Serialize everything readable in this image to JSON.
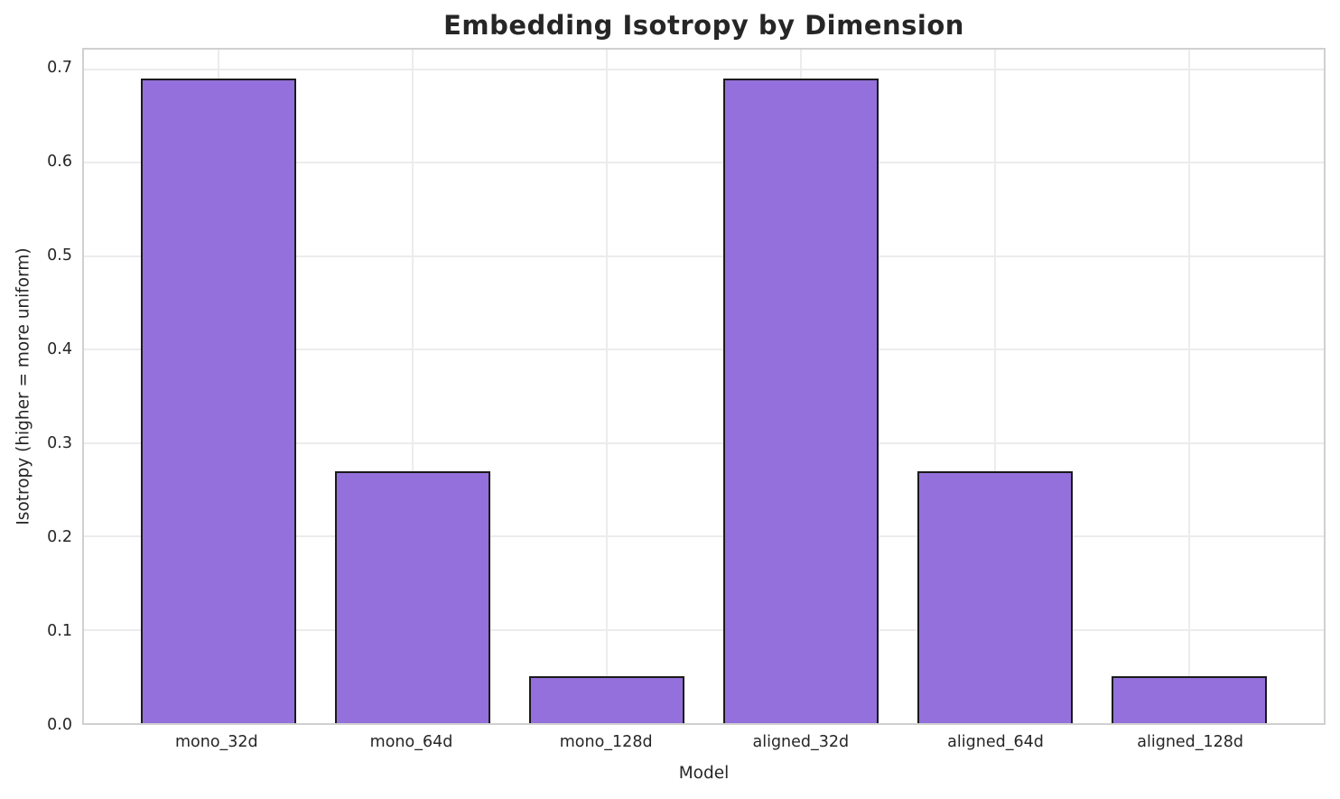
{
  "chart_data": {
    "type": "bar",
    "title": "Embedding Isotropy by Dimension",
    "xlabel": "Model",
    "ylabel": "Isotropy (higher = more uniform)",
    "categories": [
      "mono_32d",
      "mono_64d",
      "mono_128d",
      "aligned_32d",
      "aligned_64d",
      "aligned_128d"
    ],
    "values": [
      0.69,
      0.27,
      0.05,
      0.69,
      0.27,
      0.05
    ],
    "yticks": [
      0.0,
      0.1,
      0.2,
      0.3,
      0.4,
      0.5,
      0.6,
      0.7
    ],
    "ylim": [
      0,
      0.7212
    ],
    "grid": true,
    "legend": "none",
    "bar_width_fraction": 0.8,
    "colors": {
      "bar_fill": "#9370DB",
      "bar_edge": "#1a1a1a",
      "grid": "#ececec",
      "spine": "#d0d0d0",
      "text": "#262626",
      "background": "#ffffff"
    }
  }
}
